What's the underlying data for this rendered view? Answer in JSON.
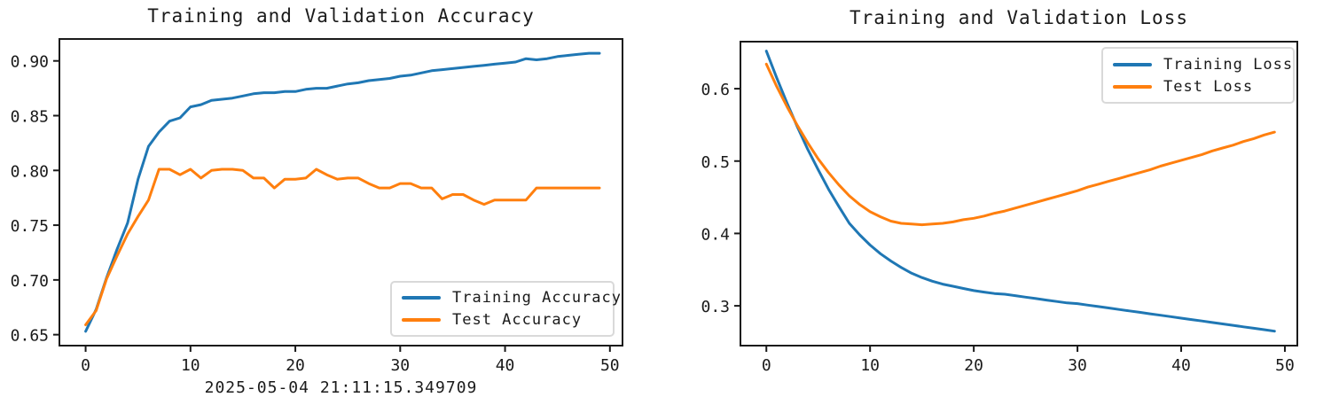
{
  "figure": {
    "background": "#ffffff",
    "text_color": "#1a1a1a",
    "axis_color": "#1a1a1a"
  },
  "chart_data": [
    {
      "type": "line",
      "title": "Training and Validation Accuracy",
      "xlabel": "2025-05-04 21:11:15.349709",
      "ylabel": "",
      "grid": false,
      "xlim": [
        -2.5,
        51.2
      ],
      "ylim": [
        0.64,
        0.92
      ],
      "xticks": [
        0,
        10,
        20,
        30,
        40,
        50
      ],
      "xtick_labels": [
        "0",
        "10",
        "20",
        "30",
        "40",
        "50"
      ],
      "yticks": [
        0.65,
        0.7,
        0.75,
        0.8,
        0.85,
        0.9
      ],
      "ytick_labels": [
        "0.65",
        "0.70",
        "0.75",
        "0.80",
        "0.85",
        "0.90"
      ],
      "legend": {
        "position": "lower right",
        "entries": [
          "Training Accuracy",
          "Test Accuracy"
        ]
      },
      "x": [
        0,
        1,
        2,
        3,
        4,
        5,
        6,
        7,
        8,
        9,
        10,
        11,
        12,
        13,
        14,
        15,
        16,
        17,
        18,
        19,
        20,
        21,
        22,
        23,
        24,
        25,
        26,
        27,
        28,
        29,
        30,
        31,
        32,
        33,
        34,
        35,
        36,
        37,
        38,
        39,
        40,
        41,
        42,
        43,
        44,
        45,
        46,
        47,
        48,
        49
      ],
      "series": [
        {
          "name": "Training Accuracy",
          "color": "#1f77b4",
          "values": [
            0.653,
            0.673,
            0.702,
            0.728,
            0.752,
            0.792,
            0.822,
            0.835,
            0.845,
            0.848,
            0.858,
            0.86,
            0.864,
            0.865,
            0.866,
            0.868,
            0.87,
            0.871,
            0.871,
            0.872,
            0.872,
            0.874,
            0.875,
            0.875,
            0.877,
            0.879,
            0.88,
            0.882,
            0.883,
            0.884,
            0.886,
            0.887,
            0.889,
            0.891,
            0.892,
            0.893,
            0.894,
            0.895,
            0.896,
            0.897,
            0.898,
            0.899,
            0.902,
            0.901,
            0.902,
            0.904,
            0.905,
            0.906,
            0.907,
            0.907
          ]
        },
        {
          "name": "Test Accuracy",
          "color": "#ff7f0e",
          "values": [
            0.659,
            0.672,
            0.701,
            0.722,
            0.742,
            0.758,
            0.773,
            0.801,
            0.801,
            0.796,
            0.801,
            0.793,
            0.8,
            0.801,
            0.801,
            0.8,
            0.793,
            0.793,
            0.784,
            0.792,
            0.792,
            0.793,
            0.801,
            0.796,
            0.792,
            0.793,
            0.793,
            0.788,
            0.784,
            0.784,
            0.788,
            0.788,
            0.784,
            0.784,
            0.774,
            0.778,
            0.778,
            0.773,
            0.769,
            0.773,
            0.773,
            0.773,
            0.773,
            0.784,
            0.784,
            0.784,
            0.784,
            0.784,
            0.784,
            0.784
          ]
        }
      ]
    },
    {
      "type": "line",
      "title": "Training and Validation Loss",
      "xlabel": "",
      "ylabel": "",
      "grid": false,
      "xlim": [
        -2.5,
        51.2
      ],
      "ylim": [
        0.245,
        0.665
      ],
      "xticks": [
        0,
        10,
        20,
        30,
        40,
        50
      ],
      "xtick_labels": [
        "0",
        "10",
        "20",
        "30",
        "40",
        "50"
      ],
      "yticks": [
        0.3,
        0.4,
        0.5,
        0.6
      ],
      "ytick_labels": [
        "0.3",
        "0.4",
        "0.5",
        "0.6"
      ],
      "legend": {
        "position": "upper right",
        "entries": [
          "Training Loss",
          "Test Loss"
        ]
      },
      "x": [
        0,
        1,
        2,
        3,
        4,
        5,
        6,
        7,
        8,
        9,
        10,
        11,
        12,
        13,
        14,
        15,
        16,
        17,
        18,
        19,
        20,
        21,
        22,
        23,
        24,
        25,
        26,
        27,
        28,
        29,
        30,
        31,
        32,
        33,
        34,
        35,
        36,
        37,
        38,
        39,
        40,
        41,
        42,
        43,
        44,
        45,
        46,
        47,
        48,
        49
      ],
      "series": [
        {
          "name": "Training Loss",
          "color": "#1f77b4",
          "values": [
            0.652,
            0.615,
            0.58,
            0.547,
            0.516,
            0.488,
            0.461,
            0.437,
            0.414,
            0.398,
            0.384,
            0.372,
            0.362,
            0.353,
            0.345,
            0.339,
            0.334,
            0.33,
            0.327,
            0.324,
            0.321,
            0.319,
            0.317,
            0.316,
            0.314,
            0.312,
            0.31,
            0.308,
            0.306,
            0.304,
            0.303,
            0.301,
            0.299,
            0.297,
            0.295,
            0.293,
            0.291,
            0.289,
            0.287,
            0.285,
            0.283,
            0.281,
            0.279,
            0.277,
            0.275,
            0.273,
            0.271,
            0.269,
            0.267,
            0.265
          ]
        },
        {
          "name": "Test Loss",
          "color": "#ff7f0e",
          "values": [
            0.634,
            0.603,
            0.575,
            0.549,
            0.525,
            0.503,
            0.484,
            0.467,
            0.452,
            0.44,
            0.43,
            0.423,
            0.417,
            0.414,
            0.413,
            0.412,
            0.413,
            0.414,
            0.416,
            0.419,
            0.421,
            0.424,
            0.428,
            0.431,
            0.435,
            0.439,
            0.443,
            0.447,
            0.451,
            0.455,
            0.459,
            0.464,
            0.468,
            0.472,
            0.476,
            0.48,
            0.484,
            0.488,
            0.493,
            0.497,
            0.501,
            0.505,
            0.509,
            0.514,
            0.518,
            0.522,
            0.527,
            0.531,
            0.536,
            0.54
          ]
        }
      ]
    }
  ]
}
